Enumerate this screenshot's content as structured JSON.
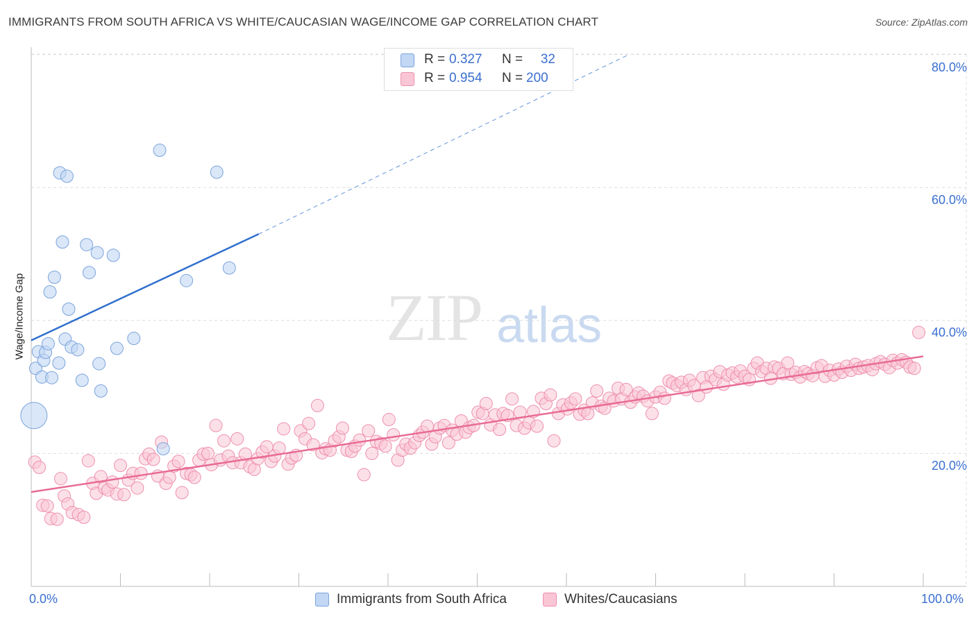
{
  "title": "IMMIGRANTS FROM SOUTH AFRICA VS WHITE/CAUCASIAN WAGE/INCOME GAP CORRELATION CHART",
  "source": "Source: ZipAtlas.com",
  "watermark": {
    "zip": "ZIP",
    "atlas": "atlas"
  },
  "stats": {
    "r_label": "R =",
    "n_label": "N =",
    "series1": {
      "r": "0.327",
      "n": "32"
    },
    "series2": {
      "r": "0.954",
      "n": "200"
    }
  },
  "legend": {
    "series1": "Immigrants from South Africa",
    "series2": "Whites/Caucasians"
  },
  "colors": {
    "series1_fill": "#c2d7f4",
    "series1_stroke": "#7aa3dc",
    "series1_line": "#2f6fce",
    "series2_fill": "#f9c6d6",
    "series2_stroke": "#ee8fae",
    "series2_line": "#e86b95",
    "tick_label": "#3a6fd0",
    "grid": "#dcdcdc"
  },
  "chart_data": {
    "type": "scatter",
    "title": "IMMIGRANTS FROM SOUTH AFRICA VS WHITE/CAUCASIAN WAGE/INCOME GAP CORRELATION CHART",
    "xlabel": "",
    "ylabel": "Wage/Income Gap",
    "xlim": [
      0,
      100
    ],
    "ylim": [
      0,
      82
    ],
    "x_tick_labels": [
      "0.0%",
      "100.0%"
    ],
    "y_ticks": [
      20,
      40,
      60,
      80
    ],
    "y_tick_labels": [
      "20.0%",
      "40.0%",
      "60.0%",
      "80.0%"
    ],
    "grid": true,
    "legend_position": "bottom",
    "series": [
      {
        "name": "Immigrants from South Africa",
        "trend": {
          "x": [
            0,
            25.5
          ],
          "y": [
            37.0,
            53.0
          ],
          "extended_x": [
            25.5,
            67
          ],
          "extended_y": [
            53.0,
            80.0
          ]
        },
        "points": [
          [
            0.3,
            25.7,
            "large"
          ],
          [
            0.5,
            32.8
          ],
          [
            0.8,
            35.3
          ],
          [
            1.2,
            31.5
          ],
          [
            1.4,
            34.0
          ],
          [
            1.6,
            35.2
          ],
          [
            1.9,
            36.5
          ],
          [
            2.1,
            44.3
          ],
          [
            2.3,
            31.4
          ],
          [
            2.6,
            46.5
          ],
          [
            3.1,
            33.6
          ],
          [
            3.2,
            62.2
          ],
          [
            3.5,
            51.8
          ],
          [
            3.8,
            37.2
          ],
          [
            4.0,
            61.7
          ],
          [
            4.2,
            41.7
          ],
          [
            4.5,
            36.0
          ],
          [
            5.2,
            35.6
          ],
          [
            5.7,
            31.0
          ],
          [
            6.2,
            51.4
          ],
          [
            6.5,
            47.2
          ],
          [
            7.4,
            50.2
          ],
          [
            7.6,
            33.5
          ],
          [
            7.8,
            29.4
          ],
          [
            9.2,
            49.8
          ],
          [
            9.6,
            35.8
          ],
          [
            11.5,
            37.3
          ],
          [
            14.4,
            65.6
          ],
          [
            14.8,
            20.7
          ],
          [
            17.4,
            46.0
          ],
          [
            20.8,
            62.3
          ],
          [
            22.2,
            47.9
          ]
        ]
      },
      {
        "name": "Whites/Caucasians",
        "trend": {
          "x": [
            0,
            100
          ],
          "y": [
            14.2,
            34.6
          ]
        },
        "points": [
          [
            0.4,
            18.7
          ],
          [
            0.9,
            17.9
          ],
          [
            1.3,
            12.2
          ],
          [
            1.8,
            12.1
          ],
          [
            2.2,
            10.2
          ],
          [
            2.9,
            10.1
          ],
          [
            3.3,
            16.2
          ],
          [
            3.7,
            13.6
          ],
          [
            4.1,
            12.4
          ],
          [
            4.6,
            11.1
          ],
          [
            5.3,
            10.8
          ],
          [
            5.9,
            10.4
          ],
          [
            6.4,
            18.9
          ],
          [
            6.9,
            15.5
          ],
          [
            7.3,
            14.0
          ],
          [
            7.8,
            16.5
          ],
          [
            8.2,
            14.8
          ],
          [
            8.6,
            14.5
          ],
          [
            9.1,
            15.7
          ],
          [
            9.6,
            13.9
          ],
          [
            10.0,
            18.2
          ],
          [
            10.4,
            13.8
          ],
          [
            10.9,
            16.0
          ],
          [
            11.4,
            17.0
          ],
          [
            11.9,
            14.8
          ],
          [
            12.3,
            17.0
          ],
          [
            12.8,
            19.2
          ],
          [
            13.2,
            19.9
          ],
          [
            13.7,
            19.1
          ],
          [
            14.2,
            16.6
          ],
          [
            14.6,
            21.7
          ],
          [
            15.1,
            15.5
          ],
          [
            15.5,
            16.4
          ],
          [
            16.0,
            18.1
          ],
          [
            16.5,
            18.8
          ],
          [
            16.9,
            14.1
          ],
          [
            17.4,
            17.0
          ],
          [
            17.9,
            16.8
          ],
          [
            18.3,
            16.4
          ],
          [
            18.8,
            19.0
          ],
          [
            19.3,
            19.9
          ],
          [
            19.8,
            20.0
          ],
          [
            20.2,
            18.3
          ],
          [
            20.7,
            24.2
          ],
          [
            21.2,
            19.0
          ],
          [
            21.6,
            21.9
          ],
          [
            22.1,
            19.6
          ],
          [
            22.6,
            18.6
          ],
          [
            23.1,
            22.2
          ],
          [
            23.5,
            18.6
          ],
          [
            24.0,
            19.9
          ],
          [
            24.5,
            18.0
          ],
          [
            25.0,
            17.6
          ],
          [
            25.4,
            19.2
          ],
          [
            25.9,
            20.2
          ],
          [
            26.4,
            21.0
          ],
          [
            26.9,
            18.8
          ],
          [
            27.3,
            19.6
          ],
          [
            27.8,
            20.8
          ],
          [
            28.3,
            23.7
          ],
          [
            28.8,
            18.4
          ],
          [
            29.2,
            19.3
          ],
          [
            29.7,
            19.7
          ],
          [
            30.2,
            23.4
          ],
          [
            30.7,
            22.2
          ],
          [
            31.1,
            24.5
          ],
          [
            31.6,
            21.3
          ],
          [
            32.1,
            27.2
          ],
          [
            32.6,
            20.1
          ],
          [
            33.0,
            20.7
          ],
          [
            33.5,
            20.5
          ],
          [
            34.0,
            21.9
          ],
          [
            34.5,
            22.5
          ],
          [
            34.9,
            23.8
          ],
          [
            35.4,
            20.5
          ],
          [
            35.9,
            20.3
          ],
          [
            36.3,
            21.1
          ],
          [
            36.8,
            22.0
          ],
          [
            37.3,
            16.8
          ],
          [
            37.8,
            23.4
          ],
          [
            38.2,
            20.0
          ],
          [
            38.7,
            21.8
          ],
          [
            39.2,
            21.5
          ],
          [
            39.7,
            21.1
          ],
          [
            40.1,
            25.1
          ],
          [
            40.6,
            22.8
          ],
          [
            41.1,
            19.0
          ],
          [
            41.6,
            20.5
          ],
          [
            42.0,
            21.4
          ],
          [
            42.5,
            20.8
          ],
          [
            43.0,
            21.6
          ],
          [
            43.5,
            22.7
          ],
          [
            43.9,
            23.2
          ],
          [
            44.4,
            24.1
          ],
          [
            44.9,
            21.4
          ],
          [
            45.3,
            22.5
          ],
          [
            45.8,
            23.8
          ],
          [
            46.3,
            24.2
          ],
          [
            46.8,
            21.6
          ],
          [
            47.2,
            23.5
          ],
          [
            47.7,
            22.9
          ],
          [
            48.2,
            24.9
          ],
          [
            48.7,
            23.2
          ],
          [
            49.1,
            23.9
          ],
          [
            49.6,
            24.2
          ],
          [
            50.1,
            26.2
          ],
          [
            50.6,
            26.0
          ],
          [
            51.0,
            27.5
          ],
          [
            51.5,
            24.3
          ],
          [
            52.0,
            25.8
          ],
          [
            52.5,
            23.6
          ],
          [
            52.9,
            26.0
          ],
          [
            53.4,
            25.7
          ],
          [
            53.9,
            28.2
          ],
          [
            54.4,
            24.2
          ],
          [
            54.8,
            26.2
          ],
          [
            55.3,
            23.8
          ],
          [
            55.8,
            24.6
          ],
          [
            56.3,
            26.3
          ],
          [
            56.7,
            24.1
          ],
          [
            57.2,
            28.3
          ],
          [
            57.7,
            27.5
          ],
          [
            58.2,
            28.8
          ],
          [
            58.6,
            21.9
          ],
          [
            59.1,
            26.0
          ],
          [
            59.6,
            27.3
          ],
          [
            60.1,
            26.7
          ],
          [
            60.5,
            27.6
          ],
          [
            61.0,
            28.2
          ],
          [
            61.5,
            25.9
          ],
          [
            62.0,
            26.5
          ],
          [
            62.4,
            26.0
          ],
          [
            62.9,
            27.6
          ],
          [
            63.4,
            29.4
          ],
          [
            63.9,
            27.1
          ],
          [
            64.3,
            26.8
          ],
          [
            64.8,
            28.3
          ],
          [
            65.3,
            27.9
          ],
          [
            65.8,
            29.8
          ],
          [
            66.2,
            28.2
          ],
          [
            66.7,
            29.6
          ],
          [
            67.2,
            27.7
          ],
          [
            67.7,
            28.5
          ],
          [
            68.1,
            29.1
          ],
          [
            68.6,
            28.6
          ],
          [
            69.1,
            27.9
          ],
          [
            69.6,
            26.0
          ],
          [
            70.0,
            28.5
          ],
          [
            70.5,
            29.2
          ],
          [
            71.0,
            28.3
          ],
          [
            71.5,
            30.9
          ],
          [
            71.9,
            30.6
          ],
          [
            72.4,
            30.2
          ],
          [
            72.9,
            30.7
          ],
          [
            73.4,
            29.6
          ],
          [
            73.8,
            31.0
          ],
          [
            74.3,
            30.2
          ],
          [
            74.8,
            28.7
          ],
          [
            75.3,
            31.4
          ],
          [
            75.7,
            30.0
          ],
          [
            76.2,
            31.6
          ],
          [
            76.7,
            31.1
          ],
          [
            77.2,
            32.3
          ],
          [
            77.6,
            30.4
          ],
          [
            78.1,
            31.8
          ],
          [
            78.6,
            32.1
          ],
          [
            79.1,
            31.5
          ],
          [
            79.5,
            32.4
          ],
          [
            80.0,
            31.6
          ],
          [
            80.5,
            31.1
          ],
          [
            81.0,
            32.8
          ],
          [
            81.4,
            33.6
          ],
          [
            81.9,
            32.3
          ],
          [
            82.4,
            32.8
          ],
          [
            82.9,
            31.3
          ],
          [
            83.3,
            33.0
          ],
          [
            83.8,
            32.8
          ],
          [
            84.3,
            32.0
          ],
          [
            84.8,
            33.6
          ],
          [
            85.2,
            31.9
          ],
          [
            85.7,
            32.2
          ],
          [
            86.2,
            31.5
          ],
          [
            86.7,
            32.3
          ],
          [
            87.1,
            32.0
          ],
          [
            87.6,
            31.7
          ],
          [
            88.1,
            32.9
          ],
          [
            88.6,
            33.2
          ],
          [
            89.0,
            31.6
          ],
          [
            89.5,
            32.5
          ],
          [
            90.0,
            31.8
          ],
          [
            90.5,
            32.7
          ],
          [
            90.9,
            32.2
          ],
          [
            91.4,
            33.1
          ],
          [
            91.9,
            32.5
          ],
          [
            92.4,
            33.4
          ],
          [
            92.8,
            32.8
          ],
          [
            93.3,
            33.0
          ],
          [
            93.8,
            33.2
          ],
          [
            94.3,
            32.6
          ],
          [
            94.7,
            33.5
          ],
          [
            95.2,
            33.8
          ],
          [
            95.7,
            33.4
          ],
          [
            96.2,
            32.9
          ],
          [
            96.6,
            34.0
          ],
          [
            97.1,
            33.6
          ],
          [
            97.6,
            34.1
          ],
          [
            98.1,
            33.7
          ],
          [
            98.5,
            33.0
          ],
          [
            99.0,
            32.8
          ],
          [
            99.5,
            38.2
          ]
        ]
      }
    ]
  }
}
